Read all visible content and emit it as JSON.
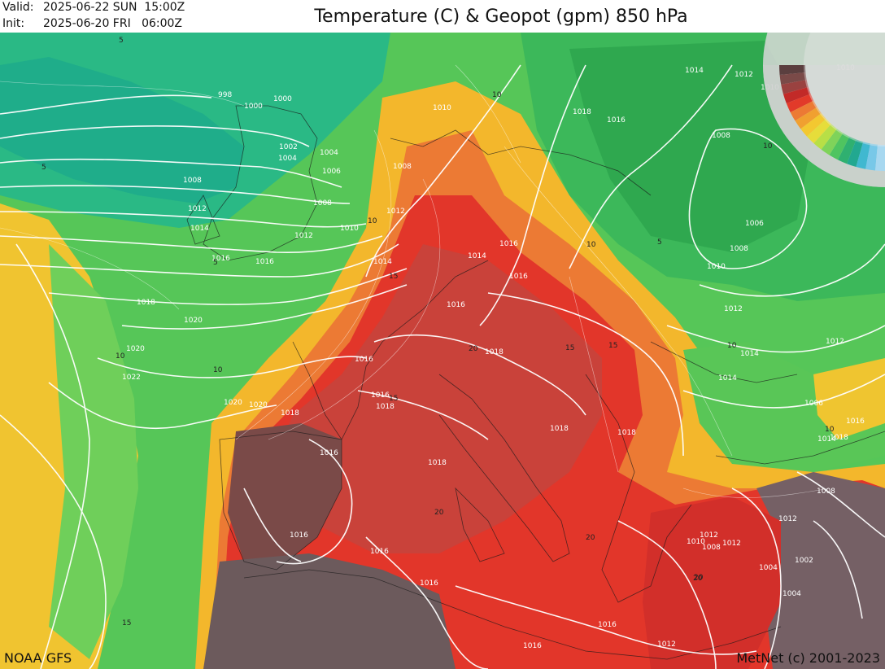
{
  "header": {
    "valid_label": "Valid:",
    "valid_value": "2025-06-22 SUN  15:00Z",
    "init_label": "Init:",
    "init_value": "2025-06-20 FRI   06:00Z",
    "title": "Temperature (C) & Geopot (gpm) 850 hPa"
  },
  "footer": {
    "model": "NOAA GFS",
    "credit": "MetNet (c) 2001-2023"
  },
  "map": {
    "field": "temperature-850hPa",
    "contours": "geopotential",
    "geopot_labels": [
      "998",
      "1000",
      "1000",
      "1002",
      "1004",
      "1004",
      "1006",
      "1008",
      "1008",
      "1008",
      "1010",
      "1010",
      "1012",
      "1012",
      "1012",
      "1014",
      "1014",
      "1014",
      "1016",
      "1016",
      "1016",
      "1016",
      "1016",
      "1016",
      "1016",
      "1016",
      "1016",
      "1018",
      "1018",
      "1018",
      "1018",
      "1018",
      "1018",
      "1018",
      "1020",
      "1020",
      "1020",
      "1020",
      "1022",
      "1006",
      "1008",
      "1008",
      "1010",
      "1012",
      "1012",
      "1014",
      "1016",
      "1016",
      "1016",
      "1014",
      "1012",
      "1010",
      "1010",
      "1006",
      "1008",
      "1012",
      "1002",
      "1004",
      "1004",
      "1012",
      "1016",
      "1018",
      "1018",
      "1014",
      "1014",
      "1016",
      "1016",
      "1012",
      "1008",
      "1010",
      "1012"
    ],
    "temp_labels": [
      "5",
      "5",
      "5",
      "5",
      "10",
      "10",
      "10",
      "10",
      "10",
      "10",
      "10",
      "10",
      "15",
      "15",
      "15",
      "15",
      "15",
      "20",
      "20",
      "20",
      "20",
      "20",
      "20"
    ]
  },
  "colors": {
    "cold": "#1fb08a",
    "cool": "#3fc06a",
    "mild": "#5ec95a",
    "warm": "#f0c830",
    "hot": "#e23a2a",
    "very_hot": "#c62a28",
    "extreme": "#6e4a4c"
  }
}
